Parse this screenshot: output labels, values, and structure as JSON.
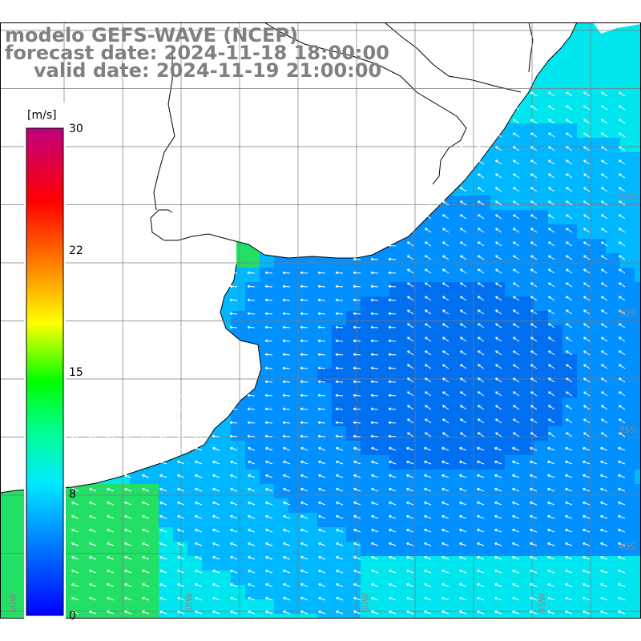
{
  "title": {
    "model": "modelo GEFS-WAVE (NCEP)",
    "forecast_date": "forecast date: 2024-11-18 18:00:00",
    "valid_date": "valid date: 2024-11-19 21:00:00"
  },
  "colorbar": {
    "unit": "[m/s]",
    "ticks": [
      "30",
      "22",
      "15",
      "8",
      "0"
    ],
    "range": [
      0,
      30
    ],
    "colors": [
      "#0000ff",
      "#0080ff",
      "#00e0ff",
      "#00ff80",
      "#00ff00",
      "#ffff00",
      "#ff8000",
      "#ff0000",
      "#c00080"
    ]
  },
  "map": {
    "lat_labels": [
      "25S",
      "30S",
      "35S",
      "40S"
    ],
    "lon_labels": [
      "60W",
      "55W",
      "50W",
      "45W"
    ],
    "land_color": "#ffffff",
    "arrow_color": "#ffffff",
    "field_colors": {
      "green": "#22e066",
      "cyan": "#00e6ee",
      "light_blue": "#00b8ff",
      "blue": "#0090ff",
      "deep_blue": "#0070f0"
    }
  }
}
